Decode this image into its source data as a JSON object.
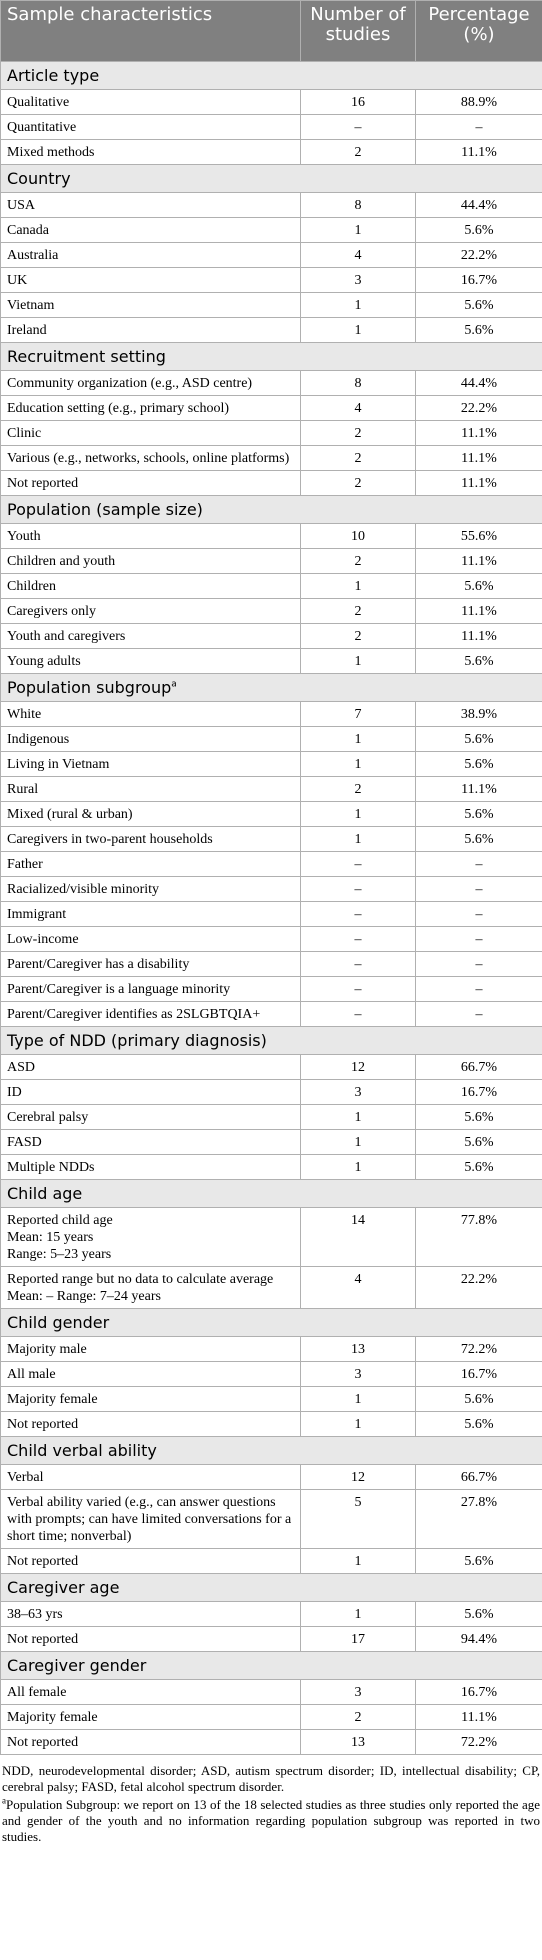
{
  "header": [
    "Sample characteristics",
    "Number of studies",
    "Percentage (%)"
  ],
  "sections": [
    {
      "title": "Article type",
      "rows": [
        {
          "label": "Qualitative",
          "n": "16",
          "pct": "88.9%"
        },
        {
          "label": "Quantitative",
          "n": "–",
          "pct": "–"
        },
        {
          "label": "Mixed methods",
          "n": "2",
          "pct": "11.1%"
        }
      ]
    },
    {
      "title": "Country",
      "rows": [
        {
          "label": "USA",
          "n": "8",
          "pct": "44.4%"
        },
        {
          "label": "Canada",
          "n": "1",
          "pct": "5.6%"
        },
        {
          "label": "Australia",
          "n": "4",
          "pct": "22.2%"
        },
        {
          "label": "UK",
          "n": "3",
          "pct": "16.7%"
        },
        {
          "label": "Vietnam",
          "n": "1",
          "pct": "5.6%"
        },
        {
          "label": "Ireland",
          "n": "1",
          "pct": "5.6%"
        }
      ]
    },
    {
      "title": "Recruitment setting",
      "rows": [
        {
          "label": "Community organization (e.g., ASD centre)",
          "n": "8",
          "pct": "44.4%"
        },
        {
          "label": "Education setting (e.g., primary school)",
          "n": "4",
          "pct": "22.2%"
        },
        {
          "label": "Clinic",
          "n": "2",
          "pct": "11.1%"
        },
        {
          "label": "Various (e.g., networks, schools, online platforms)",
          "n": "2",
          "pct": "11.1%"
        },
        {
          "label": "Not reported",
          "n": "2",
          "pct": "11.1%"
        }
      ]
    },
    {
      "title": "Population (sample size)",
      "rows": [
        {
          "label": "Youth",
          "n": "10",
          "pct": "55.6%"
        },
        {
          "label": "Children and youth",
          "n": "2",
          "pct": "11.1%"
        },
        {
          "label": "Children",
          "n": "1",
          "pct": "5.6%"
        },
        {
          "label": "Caregivers only",
          "n": "2",
          "pct": "11.1%"
        },
        {
          "label": "Youth and caregivers",
          "n": "2",
          "pct": "11.1%"
        },
        {
          "label": "Young adults",
          "n": "1",
          "pct": "5.6%"
        }
      ]
    },
    {
      "title": "Population subgroup",
      "mark": "a",
      "rows": [
        {
          "label": "White",
          "n": "7",
          "pct": "38.9%"
        },
        {
          "label": "Indigenous",
          "n": "1",
          "pct": "5.6%"
        },
        {
          "label": "Living in Vietnam",
          "n": "1",
          "pct": "5.6%"
        },
        {
          "label": "Rural",
          "n": "2",
          "pct": "11.1%"
        },
        {
          "label": "Mixed (rural & urban)",
          "n": "1",
          "pct": "5.6%"
        },
        {
          "label": "Caregivers in two-parent households",
          "n": "1",
          "pct": "5.6%"
        },
        {
          "label": "Father",
          "n": "–",
          "pct": "–"
        },
        {
          "label": "Racialized/visible minority",
          "n": "–",
          "pct": "–"
        },
        {
          "label": "Immigrant",
          "n": "–",
          "pct": "–"
        },
        {
          "label": "Low-income",
          "n": "–",
          "pct": "–"
        },
        {
          "label": "Parent/Caregiver has a disability",
          "n": "–",
          "pct": "–"
        },
        {
          "label": "Parent/Caregiver is a language minority",
          "n": "–",
          "pct": "–"
        },
        {
          "label": "Parent/Caregiver identifies as 2SLGBTQIA+",
          "n": "–",
          "pct": "–"
        }
      ]
    },
    {
      "title": "Type of NDD (primary diagnosis)",
      "rows": [
        {
          "label": "ASD",
          "n": "12",
          "pct": "66.7%"
        },
        {
          "label": "ID",
          "n": "3",
          "pct": "16.7%"
        },
        {
          "label": "Cerebral palsy",
          "n": "1",
          "pct": "5.6%"
        },
        {
          "label": "FASD",
          "n": "1",
          "pct": "5.6%"
        },
        {
          "label": "Multiple NDDs",
          "n": "1",
          "pct": "5.6%"
        }
      ]
    },
    {
      "title": "Child age",
      "rows": [
        {
          "label": [
            "Reported child age",
            "Mean: 15 years",
            "Range: 5–23 years"
          ],
          "n": "14",
          "pct": "77.8%"
        },
        {
          "label": [
            "Reported range but no data to calculate average",
            "Mean: – Range: 7–24 years"
          ],
          "n": "4",
          "pct": "22.2%"
        }
      ]
    },
    {
      "title": "Child gender",
      "rows": [
        {
          "label": "Majority male",
          "n": "13",
          "pct": "72.2%"
        },
        {
          "label": "All male",
          "n": "3",
          "pct": "16.7%"
        },
        {
          "label": "Majority female",
          "n": "1",
          "pct": "5.6%"
        },
        {
          "label": "Not reported",
          "n": "1",
          "pct": "5.6%"
        }
      ]
    },
    {
      "title": "Child verbal ability",
      "rows": [
        {
          "label": "Verbal",
          "n": "12",
          "pct": "66.7%"
        },
        {
          "label": "Verbal ability varied (e.g., can answer questions with prompts; can have limited conversations for a short time; nonverbal)",
          "n": "5",
          "pct": "27.8%"
        },
        {
          "label": "Not reported",
          "n": "1",
          "pct": "5.6%"
        }
      ]
    },
    {
      "title": "Caregiver age",
      "rows": [
        {
          "label": "38–63 yrs",
          "n": "1",
          "pct": "5.6%"
        },
        {
          "label": "Not reported",
          "n": "17",
          "pct": "94.4%"
        }
      ]
    },
    {
      "title": "Caregiver gender",
      "rows": [
        {
          "label": "All female",
          "n": "3",
          "pct": "16.7%"
        },
        {
          "label": "Majority female",
          "n": "2",
          "pct": "11.1%"
        },
        {
          "label": "Not reported",
          "n": "13",
          "pct": "72.2%"
        }
      ]
    }
  ],
  "footnotes": [
    {
      "text": "NDD, neurodevelopmental disorder; ASD, autism spectrum disorder; ID, intellectual disability; CP, cerebral palsy; FASD, fetal alcohol spectrum disorder."
    },
    {
      "mark": "a",
      "text": "Population Subgroup: we report on 13 of the 18 selected studies as three studies only reported the age and gender of the youth and no information regarding population subgroup was reported in two studies."
    }
  ]
}
